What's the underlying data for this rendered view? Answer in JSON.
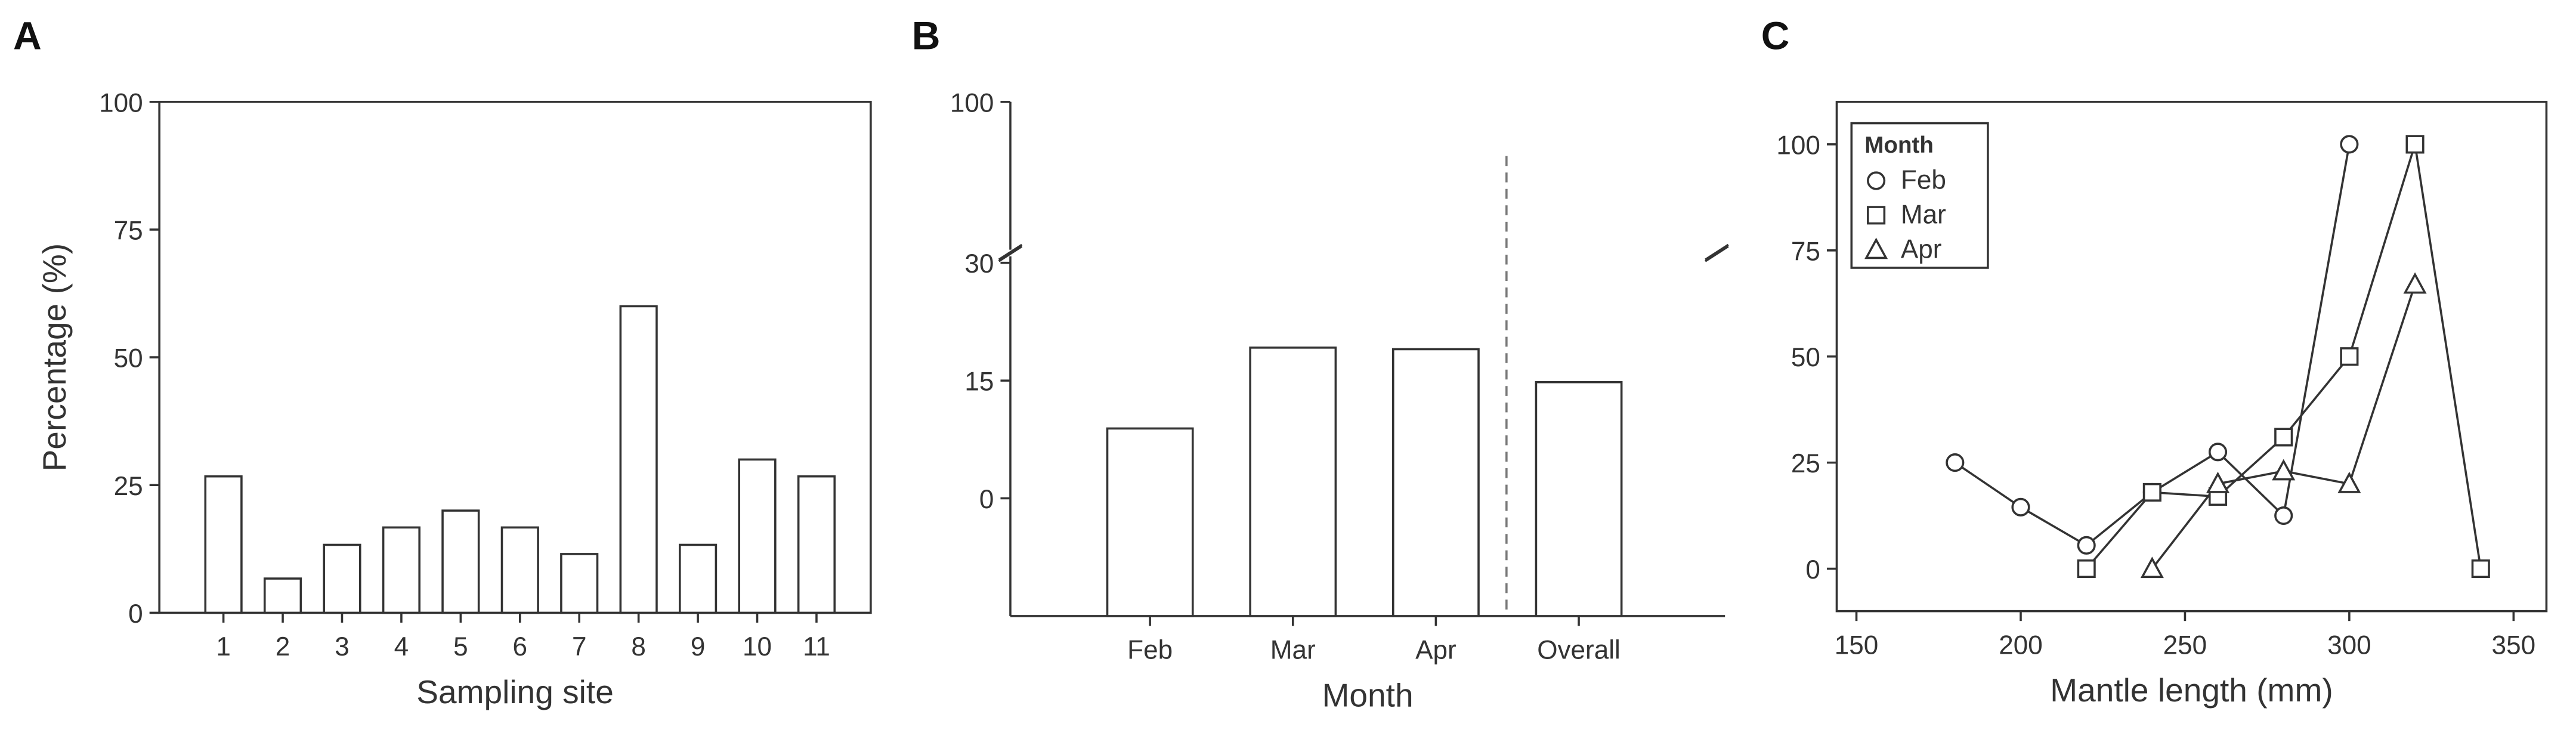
{
  "chart_data": [
    {
      "type": "bar",
      "panel": "A",
      "xlabel": "Sampling site",
      "ylabel": "Percentage (%)",
      "categories": [
        "1",
        "2",
        "3",
        "4",
        "5",
        "6",
        "7",
        "8",
        "9",
        "10",
        "11"
      ],
      "values": [
        26.7,
        6.7,
        13.3,
        16.7,
        20,
        16.7,
        11.5,
        60,
        13.3,
        30,
        26.7
      ],
      "color": "#ffffff",
      "ylim": [
        0,
        100
      ],
      "yticks": [
        0,
        25,
        50,
        75,
        100
      ]
    },
    {
      "type": "bar",
      "panel": "B",
      "xlabel": "Month",
      "categories": [
        "Feb",
        "Mar",
        "Apr",
        "Overall"
      ],
      "values": [
        8.9,
        19.2,
        19,
        14.8
      ],
      "color": "#ffffff",
      "ylim": [
        -15,
        100
      ],
      "ybreak": 30,
      "yticks": [
        0,
        15,
        30,
        100
      ]
    },
    {
      "type": "line",
      "panel": "C",
      "xlabel": "Mantle length (mm)",
      "legend_title": "Month",
      "legend": "upper left",
      "xlim": [
        144,
        360
      ],
      "xticks": [
        150,
        200,
        250,
        300,
        350
      ],
      "ylim": [
        -10,
        110
      ],
      "yticks": [
        0,
        25,
        50,
        75,
        100
      ],
      "series": [
        {
          "name": "Feb",
          "color": "#333333",
          "marker": "circle",
          "x": [
            180,
            200,
            220,
            240,
            260,
            280,
            300
          ],
          "values": [
            25,
            14.5,
            5.5,
            18,
            27.5,
            12.5,
            100
          ]
        },
        {
          "name": "Mar",
          "color": "#333333",
          "marker": "square",
          "x": [
            220,
            240,
            260,
            280,
            300,
            320,
            340
          ],
          "values": [
            0,
            18,
            17,
            31,
            50,
            100,
            0
          ]
        },
        {
          "name": "Apr",
          "color": "#333333",
          "marker": "triangle",
          "x": [
            240,
            260,
            280,
            300,
            320
          ],
          "values": [
            0,
            20,
            23,
            20,
            67
          ]
        }
      ]
    }
  ]
}
